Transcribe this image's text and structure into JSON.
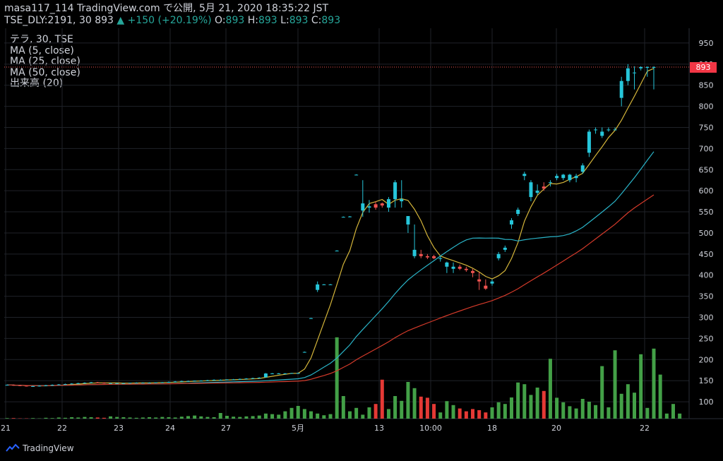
{
  "header": {
    "line1": "masa117_114 TradingView.com で公開, 5月 21, 2020 18:35:22 JST",
    "symbol": "TSE_DLY:2191, 30",
    "last": "893",
    "arrow": "▲",
    "change": "+150 (+20.19%)",
    "o_label": "O:",
    "o_val": "893",
    "h_label": "H:",
    "h_val": "893",
    "l_label": "L:",
    "l_val": "893",
    "c_label": "C:",
    "c_val": "893"
  },
  "legend": [
    "テラ, 30, TSE",
    "MA (5, close)",
    "MA (25, close)",
    "MA (50, close)",
    "出来高 (20)"
  ],
  "footer": {
    "brand": "TradingView"
  },
  "price_tag": "893",
  "colors": {
    "up": "#26c6da",
    "down": "#ef5350",
    "vol_up": "#43a047",
    "vol_down": "#e53935",
    "ma5": "#d4b53a",
    "ma25": "#2ab4c8",
    "ma50": "#d43a2a",
    "grid": "#1f2228",
    "bg": "#000000"
  },
  "chart_data": {
    "type": "candlestick",
    "y_axis": {
      "ticks": [
        100,
        150,
        200,
        250,
        300,
        350,
        400,
        450,
        500,
        550,
        600,
        650,
        700,
        750,
        800,
        850,
        900,
        950
      ],
      "range": [
        60,
        985
      ]
    },
    "x_ticks": [
      "21",
      "22",
      "23",
      "24",
      "27",
      "5月",
      "13",
      "10:00",
      "18",
      "20",
      "22"
    ],
    "last_price_line": 893,
    "candles": [
      [
        140,
        141,
        139,
        140
      ],
      [
        140,
        141,
        138,
        139
      ],
      [
        139,
        140,
        137,
        138
      ],
      [
        138,
        139,
        136,
        137
      ],
      [
        137,
        138,
        136,
        137
      ],
      [
        137,
        139,
        136,
        138
      ],
      [
        138,
        140,
        137,
        139
      ],
      [
        139,
        141,
        138,
        140
      ],
      [
        140,
        142,
        139,
        141
      ],
      [
        141,
        143,
        140,
        142
      ],
      [
        142,
        144,
        141,
        143
      ],
      [
        143,
        145,
        142,
        144
      ],
      [
        144,
        146,
        143,
        145
      ],
      [
        145,
        147,
        144,
        146
      ],
      [
        146,
        147,
        144,
        145
      ],
      [
        145,
        146,
        143,
        144
      ],
      [
        144,
        145,
        143,
        144
      ],
      [
        144,
        145,
        143,
        144
      ],
      [
        144,
        145,
        143,
        144
      ],
      [
        144,
        145,
        143,
        145
      ],
      [
        145,
        146,
        144,
        145
      ],
      [
        145,
        146,
        144,
        145
      ],
      [
        145,
        146,
        144,
        145
      ],
      [
        145,
        146,
        144,
        146
      ],
      [
        146,
        147,
        145,
        146
      ],
      [
        146,
        148,
        145,
        147
      ],
      [
        147,
        149,
        146,
        148
      ],
      [
        148,
        150,
        147,
        149
      ],
      [
        149,
        150,
        148,
        149
      ],
      [
        149,
        150,
        148,
        150
      ],
      [
        150,
        151,
        149,
        150
      ],
      [
        150,
        152,
        149,
        151
      ],
      [
        151,
        153,
        150,
        152
      ],
      [
        152,
        153,
        151,
        152
      ],
      [
        152,
        153,
        151,
        153
      ],
      [
        153,
        154,
        152,
        153
      ],
      [
        153,
        155,
        152,
        154
      ],
      [
        154,
        156,
        153,
        155
      ],
      [
        155,
        157,
        154,
        156
      ],
      [
        156,
        158,
        155,
        157
      ],
      [
        158,
        168,
        157,
        167
      ],
      [
        167,
        168,
        166,
        167
      ],
      [
        167,
        168,
        166,
        167
      ],
      [
        167,
        168,
        166,
        167
      ],
      [
        167,
        168,
        166,
        168
      ],
      [
        168,
        169,
        167,
        168
      ],
      [
        218,
        219,
        217,
        218
      ],
      [
        298,
        299,
        297,
        298
      ],
      [
        365,
        385,
        360,
        378
      ],
      [
        378,
        379,
        377,
        378
      ],
      [
        378,
        379,
        377,
        378
      ],
      [
        458,
        459,
        457,
        458
      ],
      [
        538,
        539,
        537,
        538
      ],
      [
        538,
        540,
        537,
        539
      ],
      [
        638,
        639,
        637,
        638
      ],
      [
        553,
        625,
        538,
        570
      ],
      [
        560,
        578,
        548,
        563
      ],
      [
        568,
        575,
        555,
        560
      ],
      [
        570,
        572,
        560,
        565
      ],
      [
        560,
        585,
        550,
        580
      ],
      [
        580,
        625,
        560,
        620
      ],
      [
        575,
        625,
        560,
        580
      ],
      [
        520,
        540,
        500,
        540
      ],
      [
        445,
        520,
        440,
        460
      ],
      [
        450,
        460,
        440,
        445
      ],
      [
        445,
        450,
        438,
        442
      ],
      [
        445,
        448,
        438,
        440
      ],
      [
        440,
        445,
        432,
        440
      ],
      [
        420,
        432,
        405,
        430
      ],
      [
        415,
        430,
        405,
        420
      ],
      [
        420,
        425,
        412,
        415
      ],
      [
        415,
        420,
        408,
        412
      ],
      [
        410,
        415,
        395,
        405
      ],
      [
        390,
        408,
        365,
        385
      ],
      [
        375,
        390,
        365,
        368
      ],
      [
        380,
        390,
        375,
        385
      ],
      [
        440,
        455,
        435,
        450
      ],
      [
        460,
        470,
        455,
        465
      ],
      [
        520,
        535,
        510,
        530
      ],
      [
        545,
        560,
        540,
        555
      ],
      [
        635,
        645,
        625,
        640
      ],
      [
        585,
        625,
        575,
        620
      ],
      [
        595,
        615,
        590,
        600
      ],
      [
        610,
        620,
        600,
        605
      ],
      [
        620,
        625,
        610,
        620
      ],
      [
        630,
        640,
        625,
        635
      ],
      [
        630,
        640,
        625,
        638
      ],
      [
        625,
        640,
        620,
        638
      ],
      [
        630,
        640,
        620,
        635
      ],
      [
        645,
        665,
        640,
        660
      ],
      [
        690,
        745,
        680,
        740
      ],
      [
        745,
        750,
        735,
        745
      ],
      [
        730,
        750,
        725,
        740
      ],
      [
        745,
        750,
        740,
        745
      ],
      [
        745,
        750,
        745,
        745
      ],
      [
        820,
        870,
        800,
        860
      ],
      [
        860,
        900,
        850,
        890
      ],
      [
        880,
        895,
        840,
        880
      ],
      [
        890,
        895,
        885,
        893
      ],
      [
        893,
        895,
        870,
        893
      ],
      [
        893,
        895,
        840,
        893
      ]
    ],
    "volume": [
      2,
      2,
      1,
      1,
      2,
      1,
      3,
      2,
      4,
      3,
      5,
      4,
      6,
      5,
      4,
      3,
      8,
      6,
      5,
      4,
      3,
      4,
      5,
      4,
      6,
      5,
      4,
      7,
      9,
      11,
      8,
      6,
      5,
      20,
      10,
      7,
      6,
      8,
      9,
      11,
      18,
      16,
      14,
      26,
      38,
      45,
      34,
      26,
      18,
      12,
      16,
      288,
      80,
      26,
      38,
      14,
      40,
      52,
      138,
      34,
      80,
      63,
      130,
      108,
      78,
      74,
      52,
      22,
      62,
      48,
      36,
      26,
      34,
      30,
      22,
      40,
      58,
      52,
      75,
      128,
      122,
      84,
      110,
      98,
      212,
      74,
      58,
      44,
      36,
      70,
      60,
      48,
      186,
      40,
      242,
      88,
      122,
      92,
      228,
      38,
      248,
      156,
      18,
      52,
      18
    ]
  }
}
